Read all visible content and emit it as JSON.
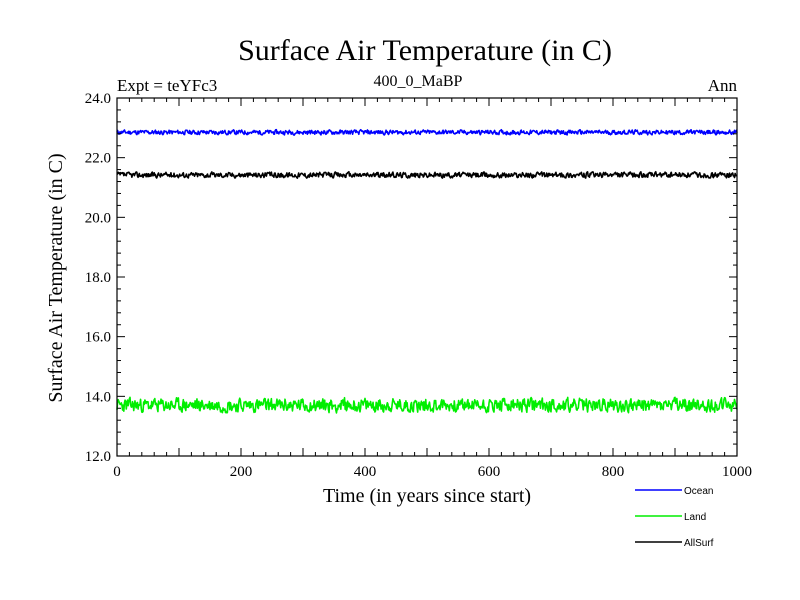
{
  "chart_data": {
    "type": "line",
    "title": "Surface Air Temperature (in C)",
    "subtitle_left": "Expt = teYFc3",
    "subtitle_center": "400_0_MaBP",
    "subtitle_right": "Ann",
    "xlabel": "Time (in years since start)",
    "ylabel": "Surface Air Temperature (in C)",
    "xlim": [
      0,
      1000
    ],
    "ylim": [
      12.0,
      24.0
    ],
    "x_ticks": [
      0,
      200,
      400,
      600,
      800,
      1000
    ],
    "x_tick_labels": [
      "0",
      "200",
      "400",
      "600",
      "800",
      "1000"
    ],
    "y_ticks": [
      12.0,
      14.0,
      16.0,
      18.0,
      20.0,
      22.0,
      24.0
    ],
    "y_tick_labels": [
      "12.0",
      "14.0",
      "16.0",
      "18.0",
      "20.0",
      "22.0",
      "24.0"
    ],
    "legend_position": "below-right",
    "series": [
      {
        "name": "Ocean",
        "color": "#0000ff",
        "mean": 22.85,
        "amplitude": 0.1,
        "seed": 11
      },
      {
        "name": "Land",
        "color": "#00ee00",
        "mean": 13.7,
        "amplitude": 0.3,
        "seed": 23
      },
      {
        "name": "AllSurf",
        "color": "#000000",
        "mean": 21.42,
        "amplitude": 0.12,
        "seed": 37
      }
    ]
  }
}
